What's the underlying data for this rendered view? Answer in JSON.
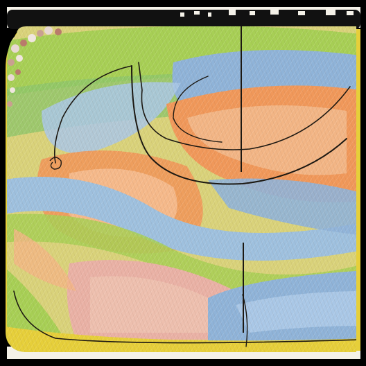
{
  "artwork": {
    "kind": "abstract-painting",
    "palette": {
      "frame_outer": "#000000",
      "paper": "#f4f1e8",
      "border_yellow": "#e6cf3a",
      "lime": "#a7cf55",
      "green": "#76b84c",
      "blue": "#8fb3d8",
      "sky": "#a9c7e6",
      "orange": "#f0985a",
      "peach": "#f2b585",
      "pink": "#e9b1a5",
      "ink": "#1c1812"
    }
  }
}
